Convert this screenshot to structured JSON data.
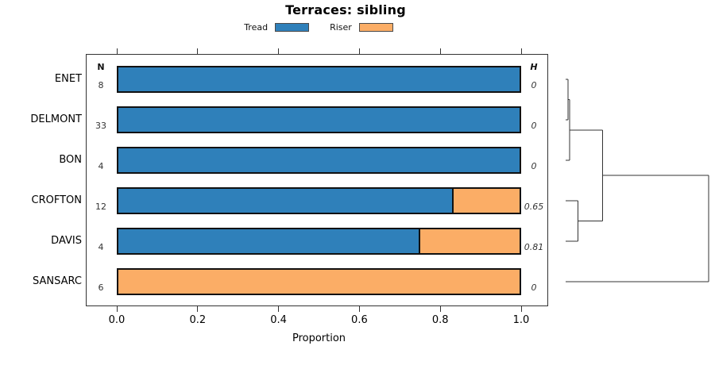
{
  "title": "Terraces: sibling",
  "legend": [
    {
      "label": "Tread",
      "color": "#2F80BA"
    },
    {
      "label": "Riser",
      "color": "#FBAD66"
    }
  ],
  "chart_data": {
    "type": "bar",
    "orientation": "horizontal",
    "stacked": true,
    "title": "Terraces: sibling",
    "xlabel": "Proportion",
    "xlim": [
      0,
      1
    ],
    "xticks": [
      0.0,
      0.2,
      0.4,
      0.6,
      0.8,
      1.0
    ],
    "xtick_labels": [
      "0.0",
      "0.2",
      "0.4",
      "0.6",
      "0.8",
      "1.0"
    ],
    "n_header": "N",
    "h_header": "H",
    "categories": [
      "ENET",
      "DELMONT",
      "BON",
      "CROFTON",
      "DAVIS",
      "SANSARC"
    ],
    "series": [
      {
        "name": "Tread",
        "color": "#2F80BA",
        "values": [
          1.0,
          1.0,
          1.0,
          0.833,
          0.75,
          0.0
        ]
      },
      {
        "name": "Riser",
        "color": "#FBAD66",
        "values": [
          0.0,
          0.0,
          0.0,
          0.167,
          0.25,
          1.0
        ]
      }
    ],
    "rows": [
      {
        "site": "ENET",
        "n": 8,
        "tread": 1.0,
        "riser": 0.0,
        "h": "0"
      },
      {
        "site": "DELMONT",
        "n": 33,
        "tread": 1.0,
        "riser": 0.0,
        "h": "0"
      },
      {
        "site": "BON",
        "n": 4,
        "tread": 1.0,
        "riser": 0.0,
        "h": "0"
      },
      {
        "site": "CROFTON",
        "n": 12,
        "tread": 0.833,
        "riser": 0.167,
        "h": "0.65"
      },
      {
        "site": "DAVIS",
        "n": 4,
        "tread": 0.75,
        "riser": 0.25,
        "h": "0.81"
      },
      {
        "site": "SANSARC",
        "n": 6,
        "tread": 0.0,
        "riser": 1.0,
        "h": "0"
      }
    ],
    "grid": false,
    "legend_position": "top-center"
  },
  "dendrogram": {
    "leaf_order": [
      "ENET",
      "DELMONT",
      "BON",
      "CROFTON",
      "DAVIS",
      "SANSARC"
    ],
    "tree": {
      "h": 1.0,
      "children": [
        {
          "h": 0.258,
          "children": [
            {
              "h": 0.028,
              "children": [
                {
                  "h": 0.017,
                  "children": [
                    {
                      "leaf": "ENET"
                    },
                    {
                      "leaf": "DELMONT"
                    }
                  ]
                },
                {
                  "leaf": "BON"
                }
              ]
            },
            {
              "h": 0.086,
              "children": [
                {
                  "leaf": "CROFTON"
                },
                {
                  "leaf": "DAVIS"
                }
              ]
            }
          ]
        },
        {
          "leaf": "SANSARC"
        }
      ]
    }
  }
}
